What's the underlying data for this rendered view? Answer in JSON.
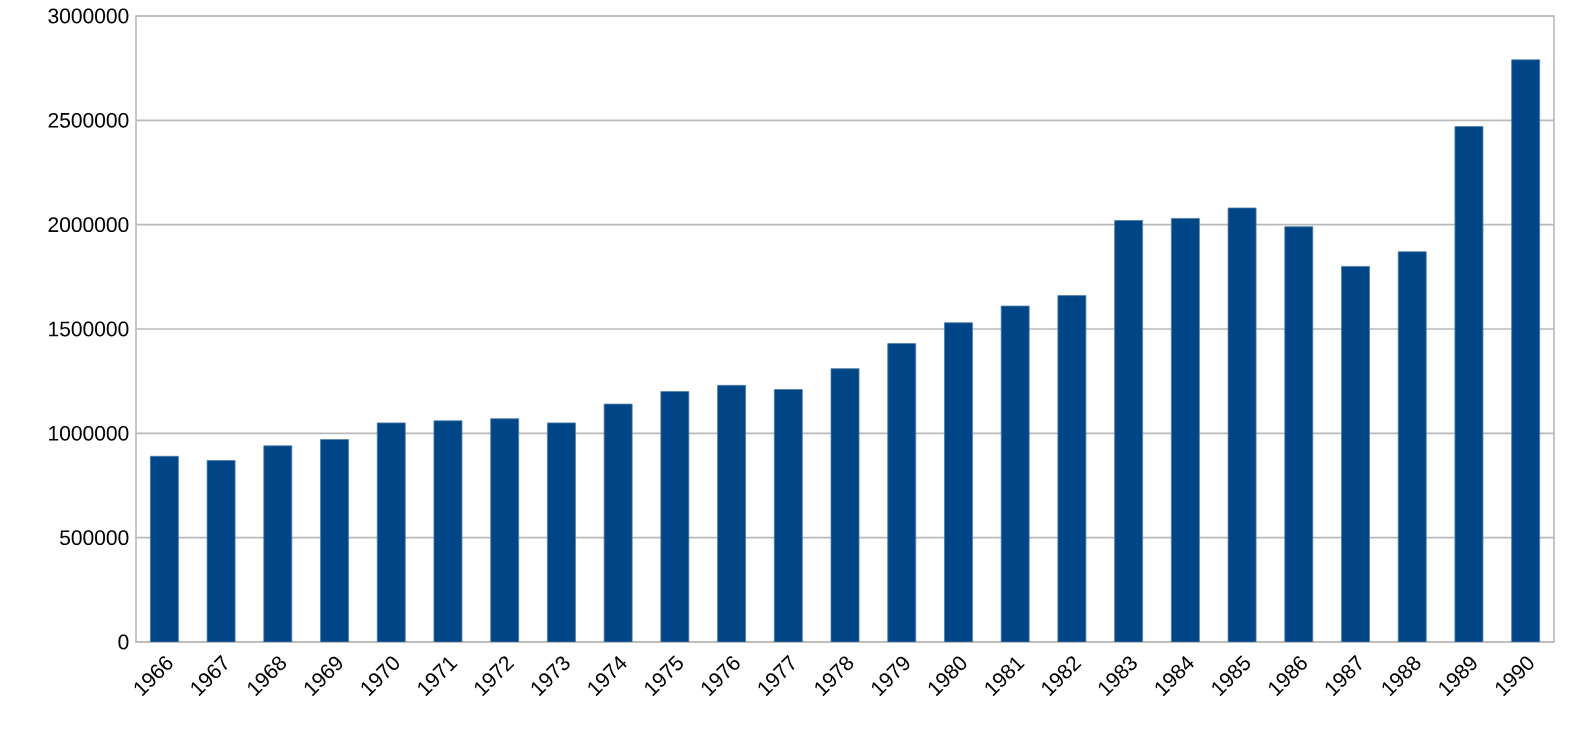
{
  "chart_data": {
    "type": "bar",
    "categories": [
      "1966",
      "1967",
      "1968",
      "1969",
      "1970",
      "1971",
      "1972",
      "1973",
      "1974",
      "1975",
      "1976",
      "1977",
      "1978",
      "1979",
      "1980",
      "1981",
      "1982",
      "1983",
      "1984",
      "1985",
      "1986",
      "1987",
      "1988",
      "1989",
      "1990"
    ],
    "values": [
      890000,
      870000,
      940000,
      970000,
      1050000,
      1060000,
      1070000,
      1050000,
      1140000,
      1200000,
      1230000,
      1210000,
      1310000,
      1430000,
      1530000,
      1610000,
      1660000,
      2020000,
      2030000,
      2080000,
      1990000,
      1800000,
      1870000,
      2470000,
      2790000
    ],
    "color": "#004586",
    "ylim": [
      0,
      3000000
    ],
    "yticks": [
      0,
      500000,
      1000000,
      1500000,
      2000000,
      2500000,
      3000000
    ],
    "grid": "y"
  }
}
